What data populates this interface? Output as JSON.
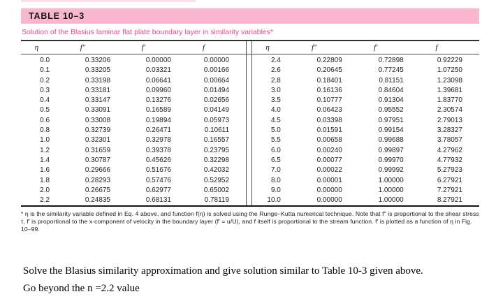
{
  "table": {
    "title": "TABLE 10–3",
    "subtitle": "Solution of the Blasius laminar flat plate boundary layer in similarity variables*",
    "columns": [
      "η",
      "f″",
      "f′",
      "f"
    ],
    "left_rows": [
      [
        "0.0",
        "0.33206",
        "0.00000",
        "0.00000"
      ],
      [
        "0.1",
        "0.33205",
        "0.03321",
        "0.00166"
      ],
      [
        "0.2",
        "0.33198",
        "0.06641",
        "0.00664"
      ],
      [
        "0.3",
        "0.33181",
        "0.09960",
        "0.01494"
      ],
      [
        "0.4",
        "0.33147",
        "0.13276",
        "0.02656"
      ],
      [
        "0.5",
        "0.33091",
        "0.16589",
        "0.04149"
      ],
      [
        "0.6",
        "0.33008",
        "0.19894",
        "0.05973"
      ],
      [
        "0.8",
        "0.32739",
        "0.26471",
        "0.10611"
      ],
      [
        "1.0",
        "0.32301",
        "0.32978",
        "0.16557"
      ],
      [
        "1.2",
        "0.31659",
        "0.39378",
        "0.23795"
      ],
      [
        "1.4",
        "0.30787",
        "0.45626",
        "0.32298"
      ],
      [
        "1.6",
        "0.29666",
        "0.51676",
        "0.42032"
      ],
      [
        "1.8",
        "0.28293",
        "0.57476",
        "0.52952"
      ],
      [
        "2.0",
        "0.26675",
        "0.62977",
        "0.65002"
      ],
      [
        "2.2",
        "0.24835",
        "0.68131",
        "0.78119"
      ]
    ],
    "right_rows": [
      [
        "2.4",
        "0.22809",
        "0.72898",
        "0.92229"
      ],
      [
        "2.6",
        "0.20645",
        "0.77245",
        "1.07250"
      ],
      [
        "2.8",
        "0.18401",
        "0.81151",
        "1.23098"
      ],
      [
        "3.0",
        "0.16136",
        "0.84604",
        "1.39681"
      ],
      [
        "3.5",
        "0.10777",
        "0.91304",
        "1.83770"
      ],
      [
        "4.0",
        "0.06423",
        "0.95552",
        "2.30574"
      ],
      [
        "4.5",
        "0.03398",
        "0.97951",
        "2.79013"
      ],
      [
        "5.0",
        "0.01591",
        "0.99154",
        "3.28327"
      ],
      [
        "5.5",
        "0.00658",
        "0.99688",
        "3.78057"
      ],
      [
        "6.0",
        "0.00240",
        "0.99897",
        "4.27962"
      ],
      [
        "6.5",
        "0.00077",
        "0.99970",
        "4.77932"
      ],
      [
        "7.0",
        "0.00022",
        "0.99992",
        "5.27923"
      ],
      [
        "8.0",
        "0.00001",
        "1.00000",
        "6.27921"
      ],
      [
        "9.0",
        "0.00000",
        "1.00000",
        "7.27921"
      ],
      [
        "10.0",
        "0.00000",
        "1.00000",
        "8.27921"
      ]
    ],
    "footnote": "* η is the similarity variable defined in Eq. 4 above, and function f(η) is solved using the Runge–Kutta numerical technique. Note that f″ is proportional to the shear stress τ, f′ is proportional to the x-component of velocity in the boundary layer (f′ = u/U), and f itself is proportional to the stream function. f′ is plotted as a function of η in Fig. 10–99.",
    "colors": {
      "band": "#f9b7cf",
      "subtitle": "#e6458d"
    }
  },
  "prompt": {
    "line1": "Solve the Blasius similarity approximation and give solution similar to Table 10-3 given above.",
    "line2": "Go beyond the n =2.2 value"
  }
}
